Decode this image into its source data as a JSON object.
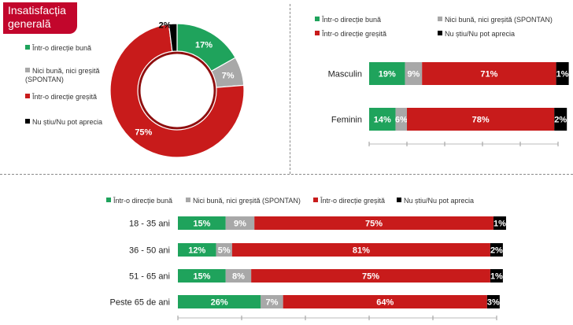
{
  "title": "Insatisfacția generală",
  "colors": {
    "good": "#1fa35c",
    "neutral": "#a8a8a8",
    "bad": "#c81b1b",
    "dk": "#000000"
  },
  "chart_data": [
    {
      "type": "pie",
      "categories": [
        "Într-o direcție bună",
        "Nici bună, nici greșită (SPONTAN)",
        "Într-o direcție greșită",
        "Nu știu/Nu pot aprecia"
      ],
      "values": [
        17,
        7,
        75,
        2
      ],
      "value_labels": [
        "17%",
        "7%",
        "75%",
        "2%"
      ],
      "legend": [
        "Într-o direcție bună",
        "Nici bună, nici greșită (SPONTAN)",
        "Într-o direcție greșită",
        "Nu știu/Nu pot aprecia"
      ]
    },
    {
      "type": "bar",
      "stacked": true,
      "orientation": "horizontal",
      "categories": [
        "Masculin",
        "Feminin"
      ],
      "series": [
        {
          "name": "Într-o direcție bună",
          "values": [
            19,
            14
          ]
        },
        {
          "name": "Nici bună, nici greșită (SPONTAN)",
          "values": [
            9,
            6
          ]
        },
        {
          "name": "Într-o direcție greșită",
          "values": [
            71,
            78
          ]
        },
        {
          "name": "Nu știu/Nu pot aprecia",
          "values": [
            1,
            2
          ]
        }
      ],
      "value_labels": [
        [
          "19%",
          "9%",
          "71%",
          "1%"
        ],
        [
          "14%",
          "6%",
          "78%",
          "2%"
        ]
      ]
    },
    {
      "type": "bar",
      "stacked": true,
      "orientation": "horizontal",
      "categories": [
        "18 - 35 ani",
        "36 - 50 ani",
        "51 - 65 ani",
        "Peste 65 de ani"
      ],
      "series": [
        {
          "name": "Într-o direcție bună",
          "values": [
            15,
            12,
            15,
            26
          ]
        },
        {
          "name": "Nici bună, nici greșită (SPONTAN)",
          "values": [
            9,
            5,
            8,
            7
          ]
        },
        {
          "name": "Într-o direcție greșită",
          "values": [
            75,
            81,
            75,
            64
          ]
        },
        {
          "name": "Nu știu/Nu pot aprecia",
          "values": [
            1,
            2,
            1,
            3
          ]
        }
      ],
      "value_labels": [
        [
          "15%",
          "9%",
          "75%",
          "1%"
        ],
        [
          "12%",
          "5%",
          "81%",
          "2%"
        ],
        [
          "15%",
          "8%",
          "75%",
          "1%"
        ],
        [
          "26%",
          "7%",
          "64%",
          "3%"
        ]
      ]
    }
  ]
}
